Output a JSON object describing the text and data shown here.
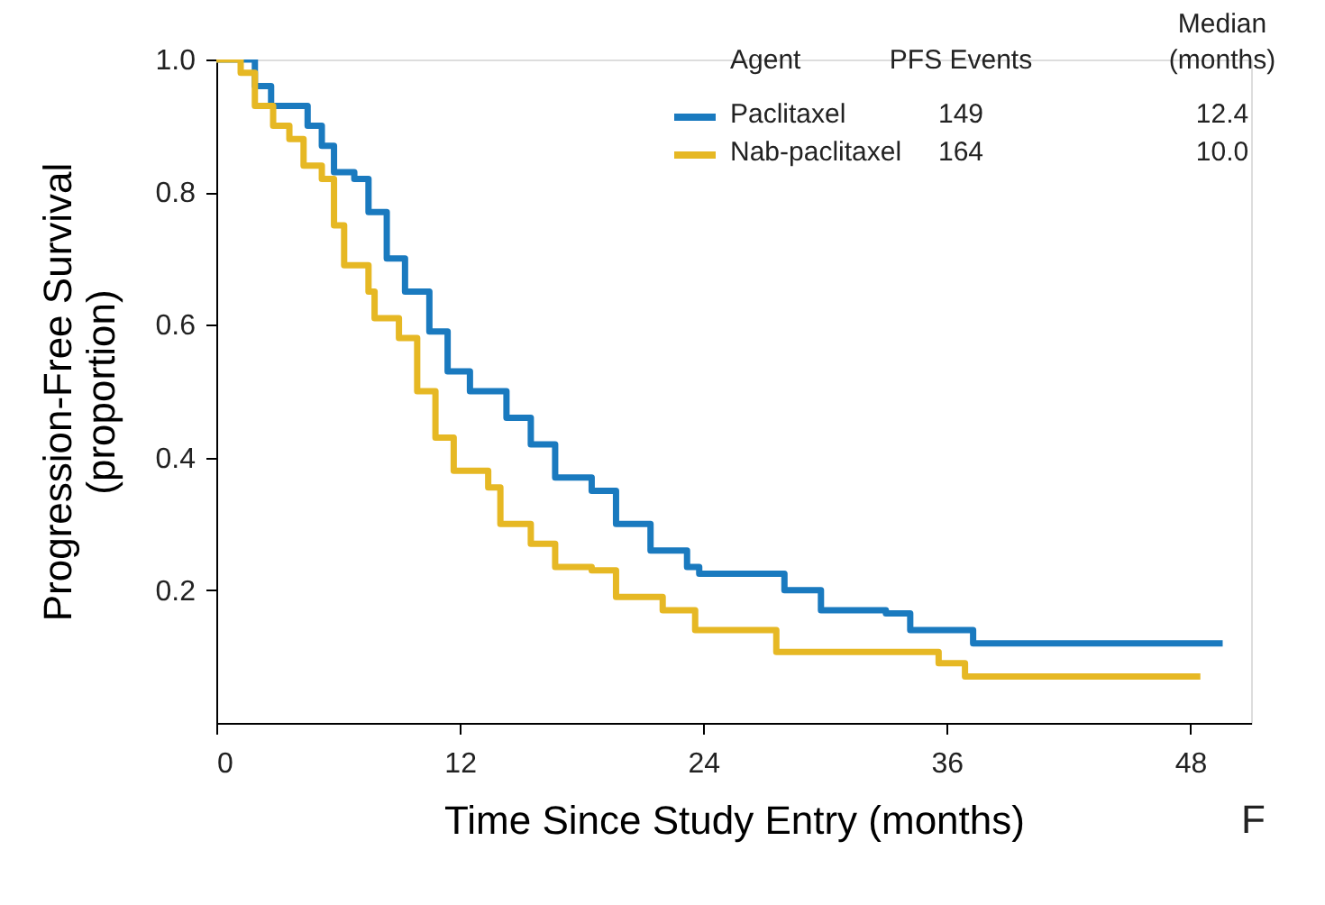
{
  "chart_data": {
    "type": "step",
    "xlabel": "Time Since Study Entry (months)",
    "ylabel": "Progression-Free Survival\n(proportion)",
    "xlim": [
      0,
      51
    ],
    "xticks": [
      0,
      12,
      24,
      36,
      48
    ],
    "ylim": [
      0,
      1.0
    ],
    "yticks": [
      0.2,
      0.4,
      0.6,
      0.8,
      {
        "value": 1.0,
        "label": "1.0"
      }
    ],
    "grid": false,
    "legend": "top right",
    "legend_title": "Agent",
    "annotations": [
      "PFS Events",
      "Median\n(months)",
      "149",
      "12.4",
      "164",
      "10.0",
      "F"
    ],
    "series": [
      {
        "name": "Paclitaxel",
        "color": "#1a7abf",
        "x": [
          0,
          1.9,
          2.7,
          4.5,
          5.2,
          5.8,
          6.8,
          7.5,
          8.4,
          9.3,
          10.5,
          11.4,
          12.5,
          14.3,
          15.5,
          16.7,
          18.5,
          19.7,
          21.4,
          23.2,
          23.8,
          28,
          29.8,
          33,
          34.2,
          37.3,
          49.6
        ],
        "values": [
          1.0,
          0.96,
          0.93,
          0.9,
          0.87,
          0.83,
          0.82,
          0.77,
          0.7,
          0.65,
          0.59,
          0.53,
          0.5,
          0.46,
          0.42,
          0.37,
          0.35,
          0.3,
          0.26,
          0.235,
          0.225,
          0.2,
          0.17,
          0.165,
          0.14,
          0.12,
          0.12
        ]
      },
      {
        "name": "Nab-paclitaxel",
        "color": "#e6b824",
        "x": [
          0,
          1.2,
          1.9,
          2.8,
          3.6,
          4.3,
          5.2,
          5.8,
          6.3,
          7.5,
          7.8,
          9.0,
          9.9,
          10.8,
          11.7,
          13.4,
          14.0,
          15.5,
          16.7,
          18.5,
          19.7,
          22,
          23.6,
          27.6,
          35.6,
          36.9,
          48.5
        ],
        "values": [
          1.0,
          0.98,
          0.93,
          0.9,
          0.88,
          0.84,
          0.82,
          0.75,
          0.69,
          0.65,
          0.61,
          0.58,
          0.5,
          0.43,
          0.38,
          0.355,
          0.3,
          0.27,
          0.235,
          0.23,
          0.19,
          0.17,
          0.14,
          0.107,
          0.09,
          0.07,
          0.07
        ]
      }
    ]
  }
}
